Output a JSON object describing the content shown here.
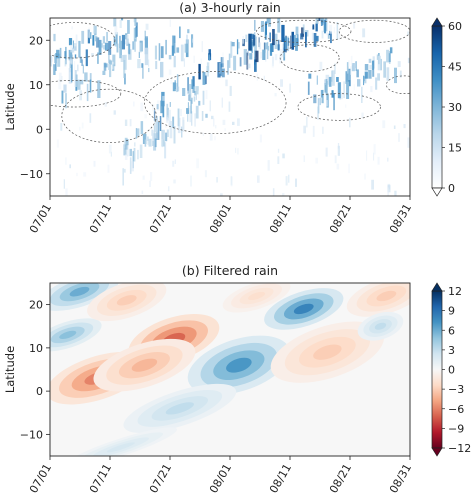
{
  "chart_data": [
    {
      "type": "heatmap",
      "title": "(a) 3-hourly rain",
      "xlabel": "",
      "ylabel": "Latitude",
      "x_tick_labels": [
        "07/01",
        "07/11",
        "07/21",
        "08/01",
        "08/11",
        "08/21",
        "08/31"
      ],
      "y_ticks": [
        -10,
        0,
        10,
        20
      ],
      "ylim": [
        -15,
        25
      ],
      "colorbar": {
        "ticks": [
          0,
          15,
          30,
          45,
          60
        ],
        "range": [
          0,
          60
        ],
        "colors": [
          "#ffffff",
          "#e3eef9",
          "#b9d6ea",
          "#7fb5d8",
          "#3f8fc5",
          "#1764ab",
          "#08306b"
        ]
      },
      "features": [
        {
          "name": "rain band",
          "start_day": 0,
          "lat_start": 14,
          "end_day": 16,
          "lat_end": 21,
          "intensity": 45
        },
        {
          "name": "rain band",
          "start_day": 2,
          "lat_start": 8,
          "end_day": 24,
          "lat_end": 18,
          "intensity": 38
        },
        {
          "name": "rain band",
          "start_day": 17,
          "lat_start": 2,
          "end_day": 38,
          "lat_end": 22,
          "intensity": 50
        },
        {
          "name": "rain band",
          "start_day": 33,
          "lat_start": 15,
          "end_day": 48,
          "lat_end": 21,
          "intensity": 55
        },
        {
          "name": "rain band",
          "start_day": 44,
          "lat_start": 6,
          "end_day": 58,
          "lat_end": 14,
          "intensity": 40
        },
        {
          "name": "rain band",
          "start_day": 12,
          "lat_start": -8,
          "end_day": 26,
          "lat_end": 4,
          "intensity": 30
        }
      ],
      "dashed_contour_regions": [
        {
          "center_day": 4,
          "center_lat": 20,
          "span_days": 7,
          "span_lat": 4
        },
        {
          "center_day": 4,
          "center_lat": 8,
          "span_days": 8,
          "span_lat": 3
        },
        {
          "center_day": 10,
          "center_lat": 3,
          "span_days": 8,
          "span_lat": 6
        },
        {
          "center_day": 28,
          "center_lat": 6,
          "span_days": 12,
          "span_lat": 7
        },
        {
          "center_day": 43,
          "center_lat": 22,
          "span_days": 8,
          "span_lat": 2.5
        },
        {
          "center_day": 44,
          "center_lat": 16,
          "span_days": 5,
          "span_lat": 3
        },
        {
          "center_day": 49,
          "center_lat": 5,
          "span_days": 7,
          "span_lat": 3
        },
        {
          "center_day": 55,
          "center_lat": 22,
          "span_days": 6,
          "span_lat": 2.5
        },
        {
          "center_day": 60,
          "center_lat": 10,
          "span_days": 3,
          "span_lat": 2
        }
      ]
    },
    {
      "type": "heatmap",
      "title": "(b) Filtered rain",
      "xlabel": "",
      "ylabel": "Latitude",
      "x_tick_labels": [
        "07/01",
        "07/11",
        "07/21",
        "08/01",
        "08/11",
        "08/21",
        "08/31"
      ],
      "y_ticks": [
        -10,
        0,
        10,
        20
      ],
      "ylim": [
        -15,
        25
      ],
      "colorbar": {
        "ticks": [
          -12,
          -9,
          -6,
          -3,
          0,
          3,
          6,
          9,
          12
        ],
        "range": [
          -12,
          12
        ],
        "colors": [
          "#67001f",
          "#b2182b",
          "#d6604d",
          "#f4a582",
          "#fddbc7",
          "#f7f7f7",
          "#d1e5f0",
          "#92c5de",
          "#4393c3",
          "#2166ac",
          "#053061"
        ]
      },
      "anomalies": [
        {
          "center_day": 5,
          "center_lat": 23,
          "span_days": 7,
          "span_lat": 3.5,
          "value": 6
        },
        {
          "center_day": 3,
          "center_lat": 13,
          "span_days": 6,
          "span_lat": 3,
          "value": 5
        },
        {
          "center_day": 13,
          "center_lat": 21,
          "span_days": 7,
          "span_lat": 4,
          "value": -3
        },
        {
          "center_day": 8,
          "center_lat": 3,
          "span_days": 9,
          "span_lat": 5,
          "value": -6
        },
        {
          "center_day": 21,
          "center_lat": 12,
          "span_days": 8,
          "span_lat": 5,
          "value": -7
        },
        {
          "center_day": 16,
          "center_lat": 6,
          "span_days": 9,
          "span_lat": 5,
          "value": -4
        },
        {
          "center_day": 32,
          "center_lat": 6,
          "span_days": 9,
          "span_lat": 6,
          "value": 7
        },
        {
          "center_day": 22,
          "center_lat": -4,
          "span_days": 10,
          "span_lat": 4,
          "value": 3
        },
        {
          "center_day": 43,
          "center_lat": 19,
          "span_days": 7,
          "span_lat": 4,
          "value": 8
        },
        {
          "center_day": 35,
          "center_lat": 22,
          "span_days": 6,
          "span_lat": 3,
          "value": -2
        },
        {
          "center_day": 47,
          "center_lat": 9,
          "span_days": 10,
          "span_lat": 6,
          "value": -3
        },
        {
          "center_day": 57,
          "center_lat": 22,
          "span_days": 7,
          "span_lat": 4,
          "value": -3
        },
        {
          "center_day": 56,
          "center_lat": 15,
          "span_days": 4,
          "span_lat": 3,
          "value": 3
        },
        {
          "center_day": 12,
          "center_lat": -13,
          "span_days": 10,
          "span_lat": 2,
          "value": 2
        }
      ]
    }
  ]
}
